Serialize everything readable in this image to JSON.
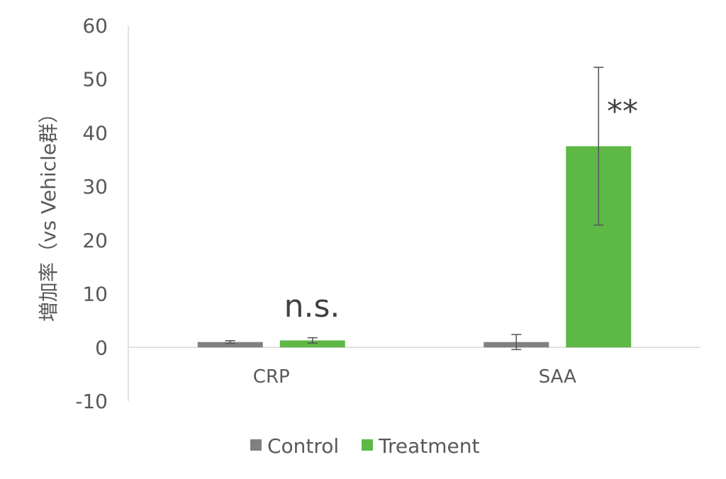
{
  "chart_data": {
    "type": "bar",
    "categories": [
      "CRP",
      "SAA"
    ],
    "series": [
      {
        "name": "Control",
        "values": [
          1.0,
          1.0
        ],
        "errors": [
          0.25,
          1.4
        ],
        "color": "#808080"
      },
      {
        "name": "Treatment",
        "values": [
          1.3,
          37.5
        ],
        "errors": [
          0.5,
          14.7
        ],
        "color": "#5DB846"
      }
    ],
    "ylabel": "増加率（vs Vehicle群）",
    "xlabel": "",
    "ylim": [
      -10,
      60
    ],
    "yticks": [
      60,
      50,
      40,
      30,
      20,
      10,
      0,
      -10
    ],
    "annotations": [
      "n.s.",
      "**"
    ],
    "legend_position": "bottom",
    "grid": false
  }
}
